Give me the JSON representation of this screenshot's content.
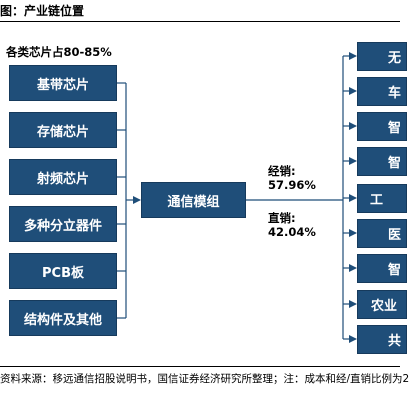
{
  "title": "图：产业链位置",
  "note": "各类芯片占80-85%",
  "left_boxes": [
    "基带芯片",
    "存储芯片",
    "射频芯片",
    "多种分立器件",
    "PCB板",
    "结构件及其他"
  ],
  "center_box": "通信模组",
  "distribution": {
    "dealer_label": "经销:",
    "dealer_pct": "57.96%",
    "direct_label": "直销:",
    "direct_pct": "42.04%"
  },
  "right_boxes": [
    "无",
    "车",
    "智",
    "智",
    "工",
    "医",
    "智",
    "农业",
    "共"
  ],
  "source": "资料来源：移远通信招股说明书，国信证券经济研究所整理；注：成本和经/直销比例为2"
}
